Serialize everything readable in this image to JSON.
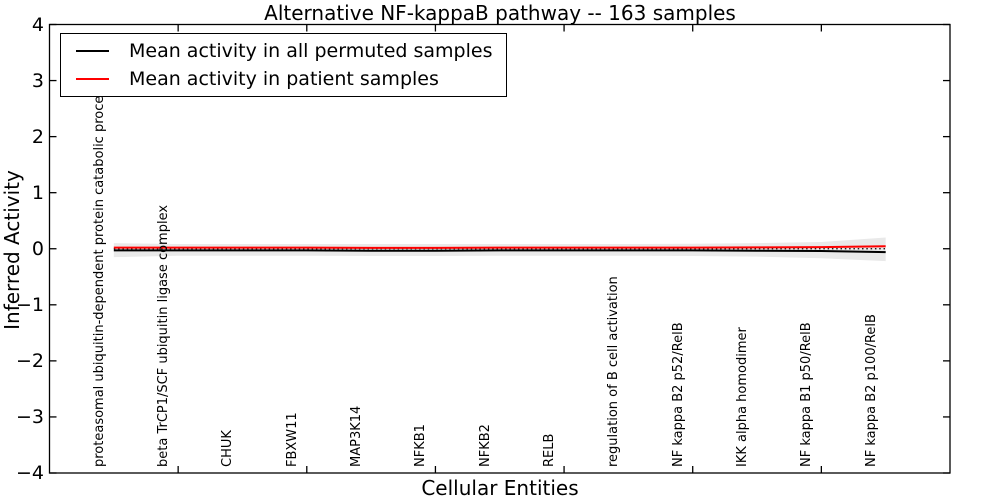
{
  "figure": {
    "title": "Alternative NF-kappaB pathway -- 163 samples"
  },
  "legend": {
    "items": [
      {
        "label": "Mean activity in all permuted samples",
        "color": "#000000"
      },
      {
        "label": "Mean activity in patient samples",
        "color": "#ff0000"
      }
    ]
  },
  "chart_data": {
    "type": "line",
    "title": "Alternative NF-kappaB pathway -- 163 samples",
    "xlabel": "Cellular Entities",
    "ylabel": "Inferred Activity",
    "ylim": [
      -4,
      4
    ],
    "yticks": [
      4,
      3,
      2,
      1,
      0,
      -1,
      -2,
      -3,
      -4
    ],
    "xlim_index": [
      -1,
      13
    ],
    "xtick_index_positions": [
      1,
      3,
      5,
      7,
      9,
      11
    ],
    "grid": false,
    "legend_position": "upper left",
    "categories": [
      "proteasomal ubiquitin-dependent protein catabolic process",
      "beta TrCP1/SCF ubiquitin ligase complex",
      "CHUK",
      "FBXW11",
      "MAP3K14",
      "NFKB1",
      "NFKB2",
      "RELB",
      "regulation of B cell activation",
      "NF kappa B2 p52/RelB",
      "IKK alpha homodimer",
      "NF kappa B1 p50/RelB",
      "NF kappa B2 p100/RelB"
    ],
    "series": [
      {
        "name": "Mean activity in all permuted samples",
        "color": "#000000",
        "style": "solid",
        "values": [
          -0.03,
          -0.03,
          -0.03,
          -0.03,
          -0.035,
          -0.035,
          -0.03,
          -0.03,
          -0.03,
          -0.03,
          -0.035,
          -0.04,
          -0.06
        ]
      },
      {
        "name": "Mean activity in patient samples",
        "color": "#ff0000",
        "style": "solid",
        "values": [
          0.02,
          0.02,
          0.02,
          0.02,
          0.015,
          0.015,
          0.02,
          0.02,
          0.02,
          0.02,
          0.025,
          0.03,
          0.045
        ]
      }
    ],
    "band": {
      "upper": [
        0.1,
        0.085,
        0.085,
        0.085,
        0.085,
        0.085,
        0.085,
        0.085,
        0.085,
        0.09,
        0.1,
        0.12,
        0.2
      ],
      "lower": [
        -0.15,
        -0.125,
        -0.125,
        -0.125,
        -0.13,
        -0.13,
        -0.125,
        -0.125,
        -0.125,
        -0.13,
        -0.14,
        -0.17,
        -0.22
      ],
      "color": "#e9e9e9"
    },
    "zero_line": {
      "value": 0,
      "style": "dotted",
      "color": "#000000"
    }
  }
}
